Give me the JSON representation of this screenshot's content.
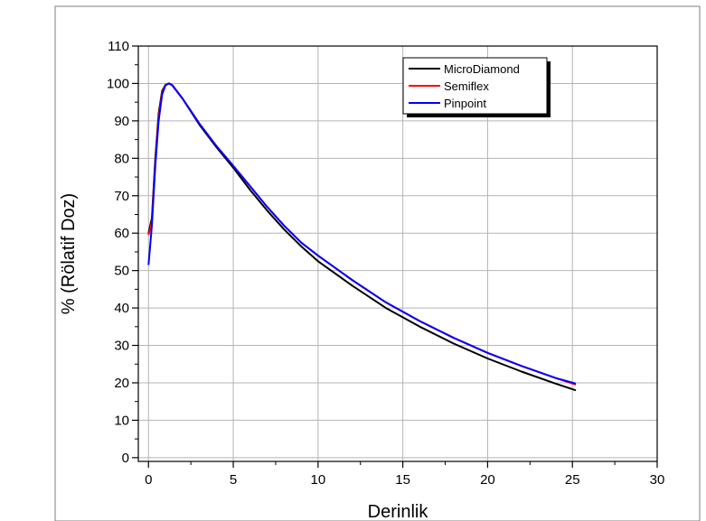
{
  "chart_data": {
    "type": "line",
    "title": "",
    "xlabel": "Derinlik",
    "ylabel": "% (Rölatif Doz)",
    "xlim": [
      -0.6,
      30
    ],
    "ylim": [
      -1,
      110
    ],
    "xticks": [
      0,
      5,
      10,
      15,
      20,
      25,
      30
    ],
    "yticks": [
      0,
      10,
      20,
      30,
      40,
      50,
      60,
      70,
      80,
      90,
      100,
      110
    ],
    "grid": true,
    "legend": {
      "position": "top-right",
      "entries": [
        "MicroDiamond",
        "Semiflex",
        "Pinpoint"
      ]
    },
    "series": [
      {
        "name": "MicroDiamond",
        "color": "#000000",
        "x": [
          0.0,
          0.2,
          0.4,
          0.6,
          0.8,
          1.0,
          1.2,
          1.4,
          2,
          3,
          4,
          5,
          6,
          7,
          8,
          9,
          10,
          12,
          14,
          16,
          18,
          20,
          22,
          24,
          25.2
        ],
        "y": [
          60,
          64,
          80,
          92,
          98,
          99.6,
          100,
          99.5,
          96,
          89,
          83,
          77.5,
          71.5,
          66,
          61,
          56.5,
          52.5,
          46,
          40,
          35,
          30.5,
          26.5,
          23,
          19.8,
          18
        ]
      },
      {
        "name": "Semiflex",
        "color": "#ff0000",
        "x": [
          0.0,
          0.2,
          0.4,
          0.6,
          0.8,
          1.0,
          1.2,
          1.4,
          2,
          3,
          4,
          5,
          6,
          7,
          8,
          9,
          10,
          12,
          14,
          16,
          18,
          20,
          22,
          24,
          25.2
        ],
        "y": [
          59.5,
          63,
          79,
          91,
          97.5,
          99.6,
          100,
          99.5,
          96,
          89.3,
          83.3,
          78,
          72.5,
          67,
          62,
          57.5,
          54,
          47.5,
          41.5,
          36.5,
          32,
          28,
          24.5,
          21.3,
          19.5
        ]
      },
      {
        "name": "Pinpoint",
        "color": "#0000ff",
        "x": [
          0.0,
          0.2,
          0.4,
          0.6,
          0.8,
          1.0,
          1.2,
          1.4,
          2,
          3,
          4,
          5,
          6,
          7,
          8,
          9,
          10,
          12,
          14,
          16,
          18,
          20,
          22,
          24,
          25.2
        ],
        "y": [
          51.5,
          62,
          78,
          90,
          97,
          99.5,
          100,
          99.6,
          96,
          89.3,
          83.3,
          78,
          72.5,
          67,
          62,
          57.5,
          54,
          47.5,
          41.5,
          36.5,
          32,
          28,
          24.5,
          21.3,
          19.8
        ]
      }
    ]
  }
}
